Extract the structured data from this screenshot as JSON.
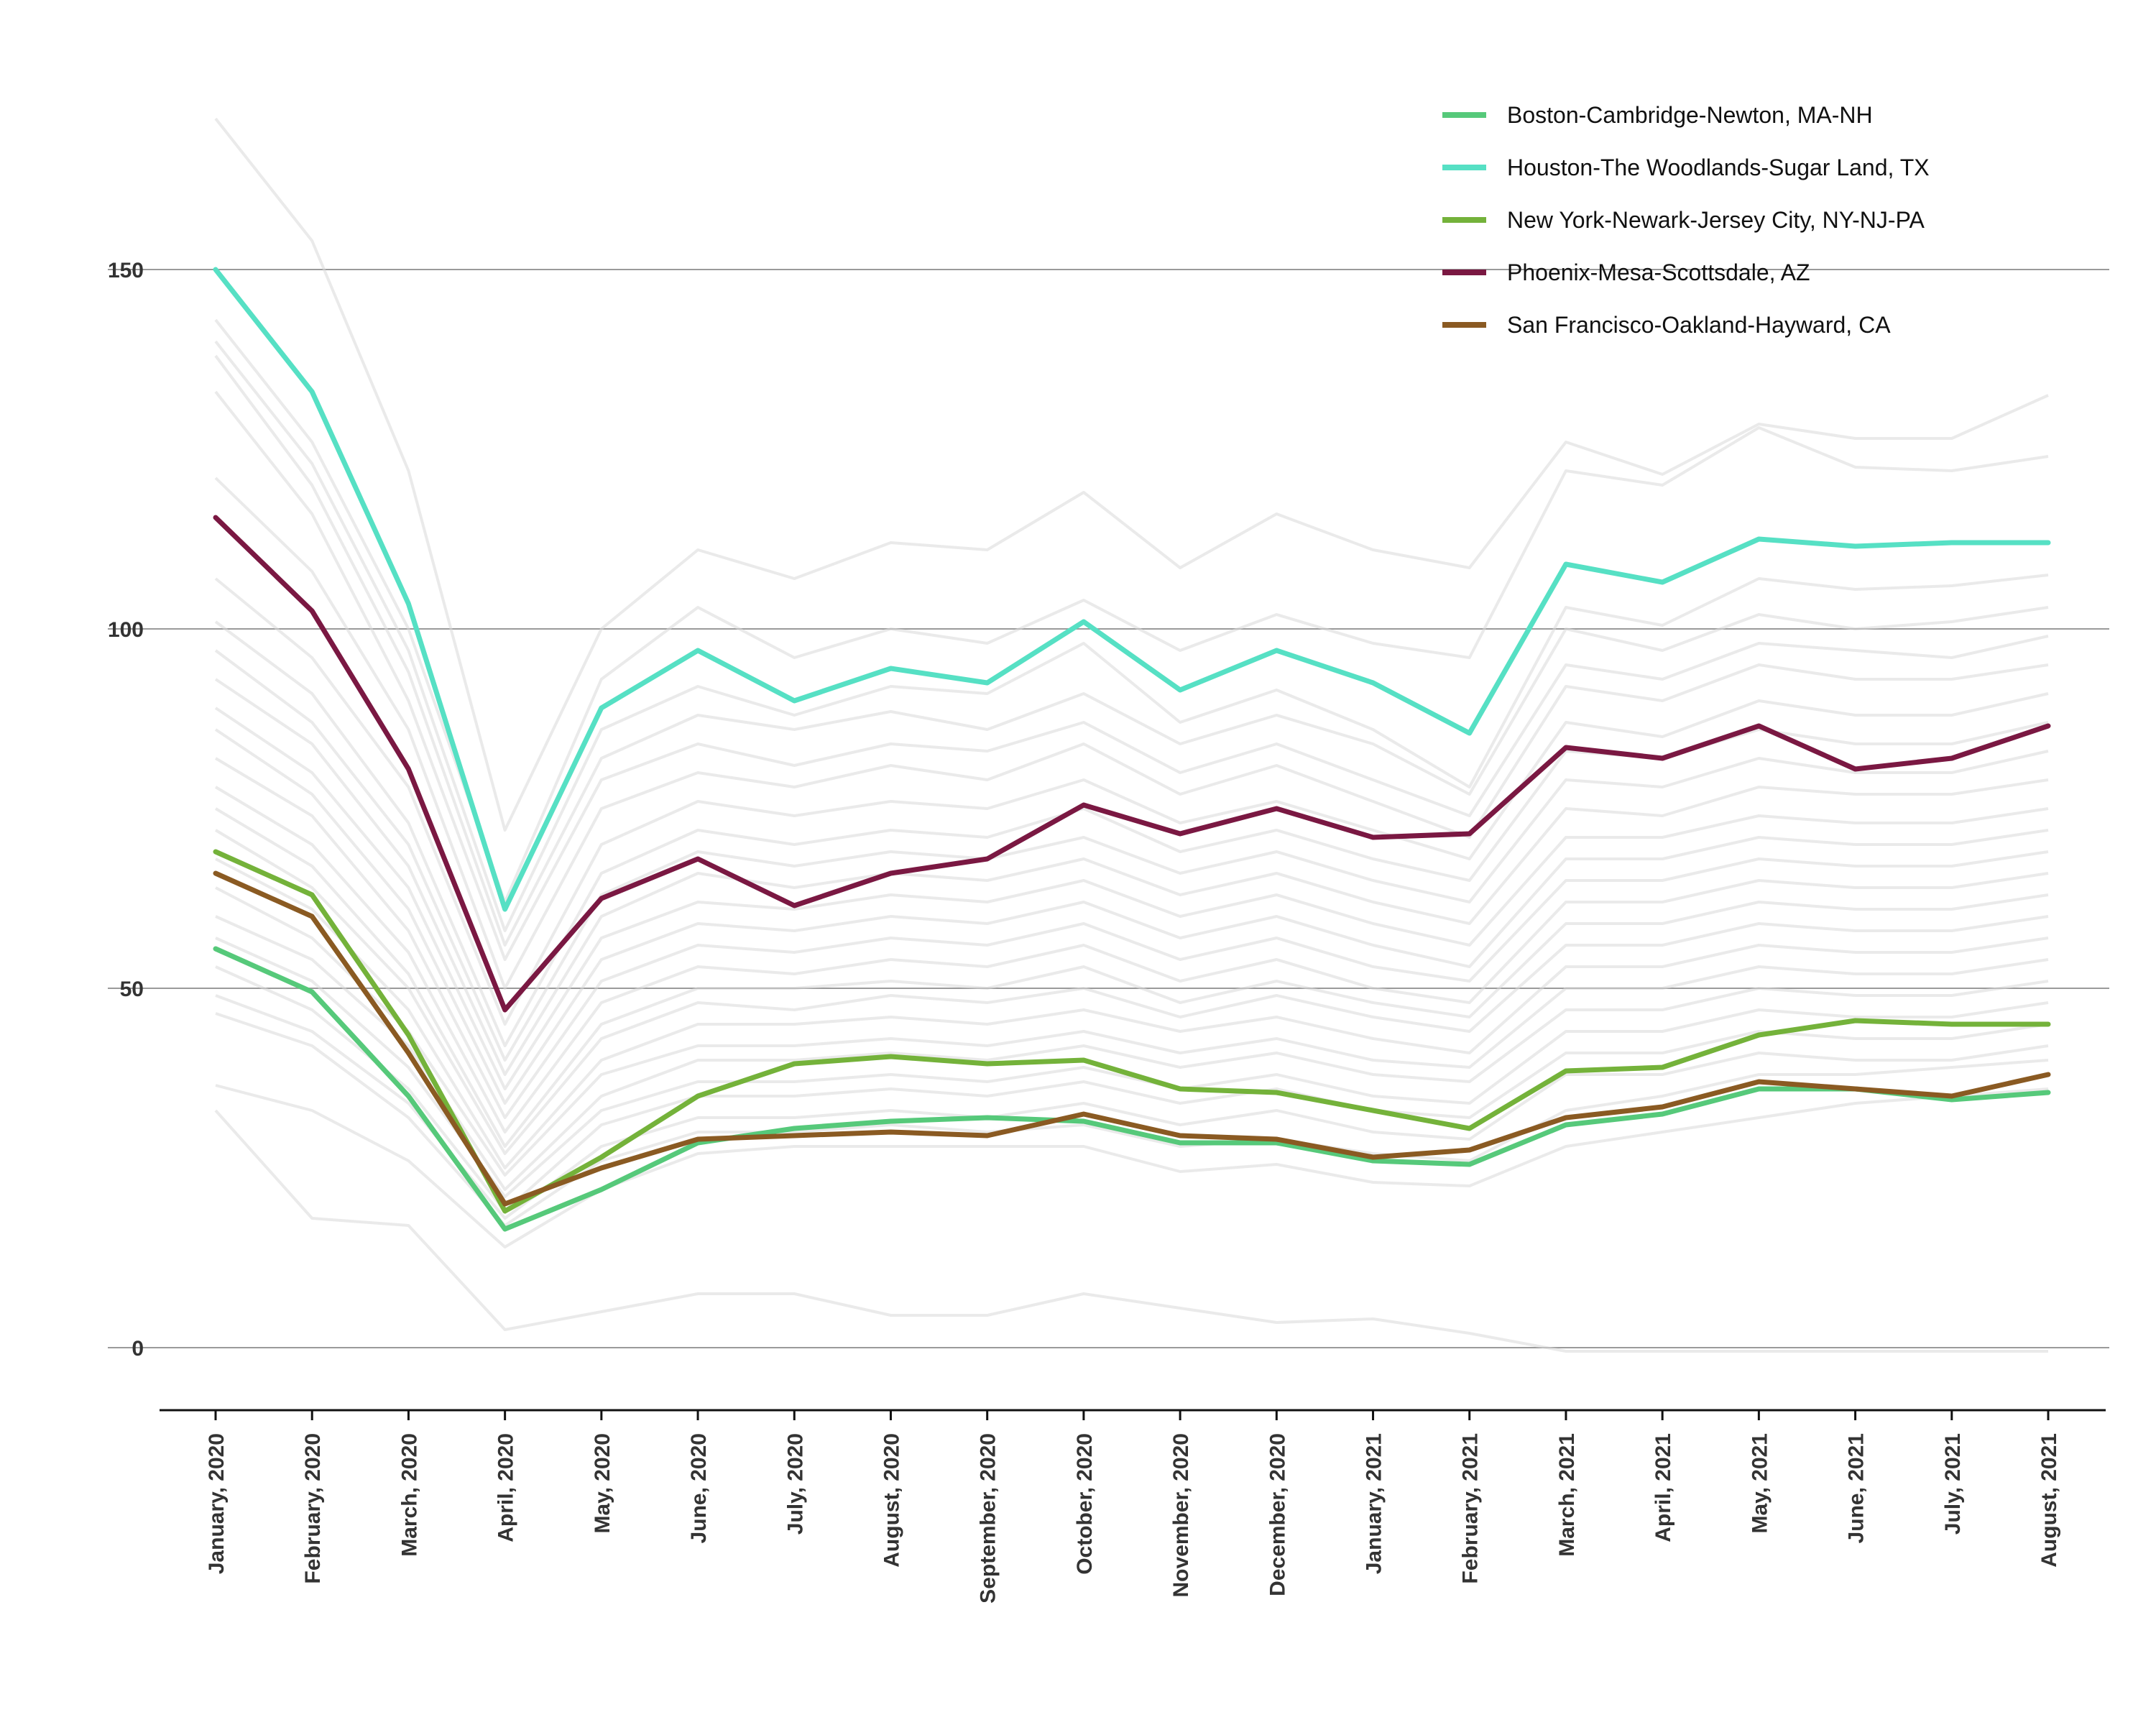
{
  "chart_data": {
    "type": "line",
    "title": "",
    "xlabel": "",
    "ylabel": "",
    "ylim": [
      -8,
      170
    ],
    "y_ticks": [
      0,
      50,
      100,
      150
    ],
    "grid": "horizontal",
    "legend_position": "top-right",
    "x": [
      "January, 2020",
      "February, 2020",
      "March, 2020",
      "April, 2020",
      "May, 2020",
      "June, 2020",
      "July, 2020",
      "August, 2020",
      "September, 2020",
      "October, 2020",
      "November, 2020",
      "December, 2020",
      "January, 2021",
      "February, 2021",
      "March, 2021",
      "April, 2021",
      "May, 2021",
      "June, 2021",
      "July, 2021",
      "August, 2021"
    ],
    "series": [
      {
        "name": "Boston-Cambridge-Newton, MA-NH",
        "color": "#56c97a",
        "values": [
          55.5,
          49.5,
          35,
          16.5,
          22,
          28.5,
          30.5,
          31.5,
          32,
          31.5,
          28.5,
          28.5,
          26,
          25.5,
          31,
          32.5,
          36,
          36,
          34.5,
          35.5
        ]
      },
      {
        "name": "Houston-The Woodlands-Sugar Land, TX",
        "color": "#56e0c4",
        "values": [
          150,
          133,
          103.5,
          61,
          89,
          97,
          90,
          94.5,
          92.5,
          101,
          91.5,
          97,
          92.5,
          85.5,
          109,
          106.5,
          112.5,
          111.5,
          112,
          112
        ]
      },
      {
        "name": "New York-Newark-Jersey City, NY-NJ-PA",
        "color": "#74b23a",
        "values": [
          69,
          63,
          43.5,
          19,
          26.5,
          35,
          39.5,
          40.5,
          39.5,
          40,
          36,
          35.5,
          33,
          30.5,
          38.5,
          39,
          43.5,
          45.5,
          45,
          45
        ]
      },
      {
        "name": "Phoenix-Mesa-Scottsdale, AZ",
        "color": "#7a1842",
        "values": [
          115.5,
          102.5,
          80.5,
          47,
          62.5,
          68,
          61.5,
          66,
          68,
          75.5,
          71.5,
          75,
          71,
          71.5,
          83.5,
          82,
          86.5,
          80.5,
          82,
          86.5
        ]
      },
      {
        "name": "San Francisco-Oakland-Hayward, CA",
        "color": "#8a5a22",
        "values": [
          66,
          60,
          41,
          20,
          25,
          29,
          29.5,
          30,
          29.5,
          32.5,
          29.5,
          29,
          26.5,
          27.5,
          32,
          33.5,
          37,
          36,
          35,
          38
        ]
      }
    ],
    "background_series_color": "#d9d9d9",
    "background_series": [
      [
        171,
        154,
        122,
        72,
        100,
        111,
        107,
        112,
        111,
        119,
        108.5,
        116,
        111,
        108.5,
        126,
        121.5,
        128.5,
        126.5,
        126.5,
        132.5
      ],
      [
        143,
        126,
        100,
        62,
        93,
        103,
        96,
        100,
        98,
        104,
        97,
        102,
        98,
        96,
        122,
        120,
        128,
        122.5,
        122,
        124
      ],
      [
        140,
        123,
        97,
        58,
        86,
        92,
        88,
        92,
        91,
        98,
        87,
        91.5,
        86,
        78,
        103,
        100.5,
        107,
        105.5,
        106,
        107.5
      ],
      [
        138,
        120,
        94,
        56,
        82,
        88,
        86,
        88.5,
        86,
        91,
        84,
        88,
        84,
        77,
        100,
        97,
        102,
        100,
        101,
        103
      ],
      [
        133,
        116,
        90,
        54,
        79,
        84,
        81,
        84,
        83,
        87,
        80,
        84,
        79,
        74,
        95,
        93,
        98,
        97,
        96,
        99
      ],
      [
        121,
        108,
        86,
        50,
        75,
        80,
        78,
        81,
        79,
        84,
        77,
        81,
        76,
        71,
        92,
        90,
        95,
        93,
        93,
        95
      ],
      [
        107,
        96,
        78,
        45,
        70,
        76,
        74,
        76,
        75,
        79,
        73,
        76,
        72,
        68,
        87,
        85,
        90,
        88,
        88,
        91
      ],
      [
        101,
        91,
        73,
        42,
        66,
        72,
        70,
        72,
        71,
        75,
        69,
        72,
        68,
        65,
        83,
        82,
        86,
        84,
        84,
        87
      ],
      [
        97,
        87,
        70,
        40,
        63,
        69,
        67,
        69,
        68,
        71,
        66,
        69,
        65,
        62,
        79,
        78,
        82,
        80,
        80,
        83
      ],
      [
        93,
        84,
        67,
        38,
        60,
        66,
        64,
        66,
        65,
        68,
        63,
        66,
        62,
        59,
        75,
        74,
        78,
        77,
        77,
        79
      ],
      [
        89,
        80,
        64,
        36,
        57,
        62,
        61,
        63,
        62,
        65,
        60,
        63,
        59,
        56,
        71,
        71,
        74,
        73,
        73,
        75
      ],
      [
        86,
        77,
        61,
        34,
        54,
        59,
        58,
        60,
        59,
        62,
        57,
        60,
        56,
        53,
        68,
        68,
        71,
        70,
        70,
        72
      ],
      [
        82,
        74,
        58,
        32,
        51,
        56,
        55,
        57,
        56,
        59,
        54,
        57,
        53,
        51,
        65,
        65,
        68,
        67,
        67,
        69
      ],
      [
        78,
        70,
        55,
        30,
        48,
        53,
        52,
        54,
        53,
        56,
        51,
        54,
        50,
        48,
        62,
        62,
        65,
        64,
        64,
        66
      ],
      [
        75,
        67,
        52,
        28,
        45,
        50,
        50,
        51,
        50,
        53,
        48,
        51,
        48,
        46,
        59,
        59,
        62,
        61,
        61,
        63
      ],
      [
        72,
        64,
        50,
        27,
        43,
        48,
        47,
        49,
        48,
        50,
        46,
        49,
        46,
        44,
        56,
        56,
        59,
        58,
        58,
        60
      ],
      [
        68,
        61,
        47,
        25,
        40,
        45,
        45,
        46,
        45,
        47,
        44,
        46,
        43,
        41,
        53,
        53,
        56,
        55,
        55,
        57
      ],
      [
        64,
        57,
        44,
        24,
        38,
        42,
        42,
        43,
        42,
        44,
        41,
        43,
        40,
        39,
        50,
        50,
        53,
        52,
        52,
        54
      ],
      [
        60,
        54,
        42,
        22,
        35,
        40,
        40,
        41,
        40,
        42,
        39,
        41,
        38,
        37,
        47,
        47,
        50,
        49,
        49,
        51
      ],
      [
        57,
        51,
        39,
        21,
        33,
        37,
        37,
        38,
        37,
        39,
        36,
        38,
        35,
        34,
        44,
        44,
        47,
        46,
        46,
        48
      ],
      [
        53,
        47,
        36,
        19,
        31,
        35,
        35,
        36,
        35,
        37,
        34,
        36,
        33,
        32,
        41,
        41,
        44,
        43,
        43,
        45
      ],
      [
        49,
        44,
        34,
        18,
        28,
        32,
        32,
        33,
        32,
        34,
        31,
        33,
        30,
        29,
        38,
        38,
        41,
        40,
        40,
        42
      ],
      [
        46.5,
        42,
        32,
        17,
        26,
        30,
        30,
        31,
        30,
        31,
        28,
        29,
        27,
        26,
        33,
        35,
        38,
        38,
        39,
        40
      ],
      [
        36.5,
        33,
        26,
        14,
        22,
        27,
        28,
        28,
        28,
        28,
        24.5,
        25.5,
        23,
        22.5,
        28,
        30,
        32,
        34,
        35,
        36
      ],
      [
        33,
        18,
        17,
        2.5,
        5,
        7.5,
        7.5,
        4.5,
        4.5,
        7.5,
        5.5,
        3.5,
        4,
        2,
        -0.5,
        -0.5,
        -0.5,
        -0.5,
        -0.5,
        -0.5
      ]
    ]
  }
}
